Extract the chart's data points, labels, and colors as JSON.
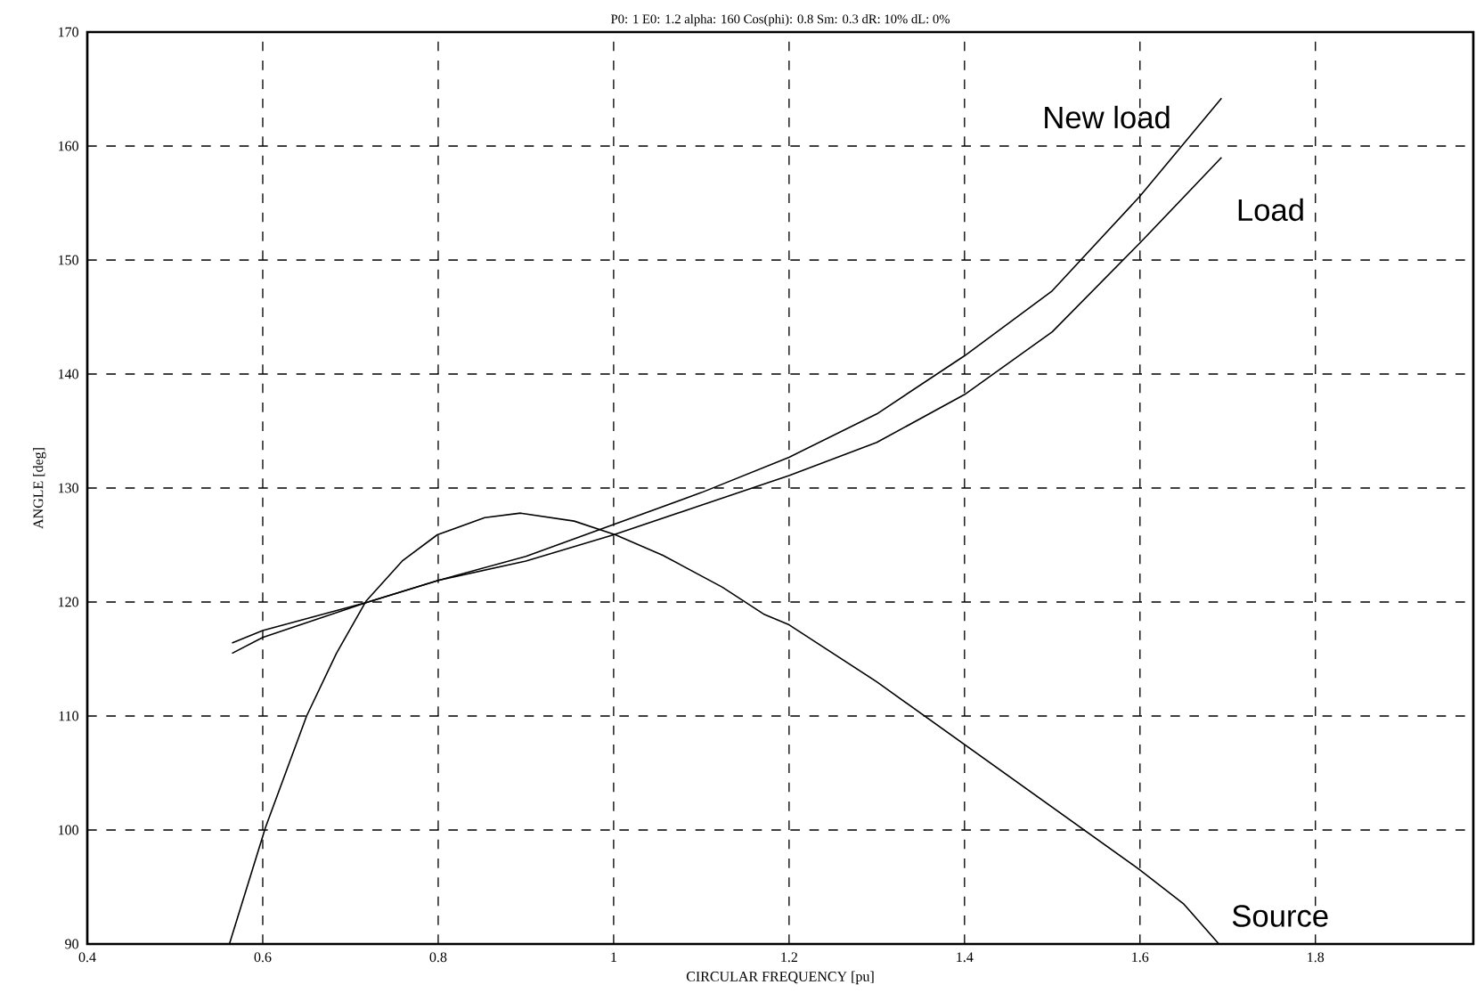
{
  "chart_data": {
    "type": "line",
    "title": "P0: 1  E0: 1.2  alpha: 160  Cos(phi): 0.8  Sm: 0.3  dR: 10%  dL: 0%",
    "xlabel": "CIRCULAR FREQUENCY [pu]",
    "ylabel": "ANGLE [deg]",
    "xlim": [
      0.4,
      1.98
    ],
    "ylim": [
      90,
      170
    ],
    "xticks": [
      0.4,
      0.6,
      0.8,
      1,
      1.2,
      1.4,
      1.6,
      1.8
    ],
    "yticks": [
      90,
      100,
      110,
      120,
      130,
      140,
      150,
      160,
      170
    ],
    "grid": true,
    "marker": "none",
    "line_style": "solid",
    "series": [
      {
        "name": "New load",
        "color": "#000000",
        "x": [
          0.565,
          0.6,
          0.72,
          0.8,
          0.9,
          1.0,
          1.1,
          1.2,
          1.3,
          1.4,
          1.5,
          1.6,
          1.693
        ],
        "values": [
          116.4,
          117.5,
          120.0,
          121.9,
          124.0,
          126.8,
          129.6,
          132.7,
          136.5,
          141.6,
          147.3,
          155.6,
          164.2
        ]
      },
      {
        "name": "Load",
        "color": "#000000",
        "x": [
          0.565,
          0.6,
          0.72,
          0.8,
          0.9,
          1.0,
          1.1,
          1.2,
          1.3,
          1.4,
          1.5,
          1.6,
          1.693
        ],
        "values": [
          115.5,
          116.9,
          120.0,
          121.9,
          123.6,
          125.9,
          128.5,
          131.1,
          134.0,
          138.2,
          143.7,
          151.5,
          159.0
        ]
      },
      {
        "name": "Source",
        "color": "#000000",
        "x": [
          0.562,
          0.603,
          0.65,
          0.684,
          0.718,
          0.759,
          0.799,
          0.853,
          0.894,
          0.955,
          1.002,
          1.056,
          1.124,
          1.172,
          1.2,
          1.3,
          1.4,
          1.5,
          1.6,
          1.65,
          1.69
        ],
        "values": [
          90,
          100.2,
          110,
          115.5,
          120.1,
          123.6,
          125.9,
          127.4,
          127.8,
          127.1,
          125.9,
          124.1,
          121.3,
          118.9,
          118.0,
          113.0,
          107.5,
          102.0,
          96.5,
          93.5,
          90
        ]
      }
    ]
  }
}
